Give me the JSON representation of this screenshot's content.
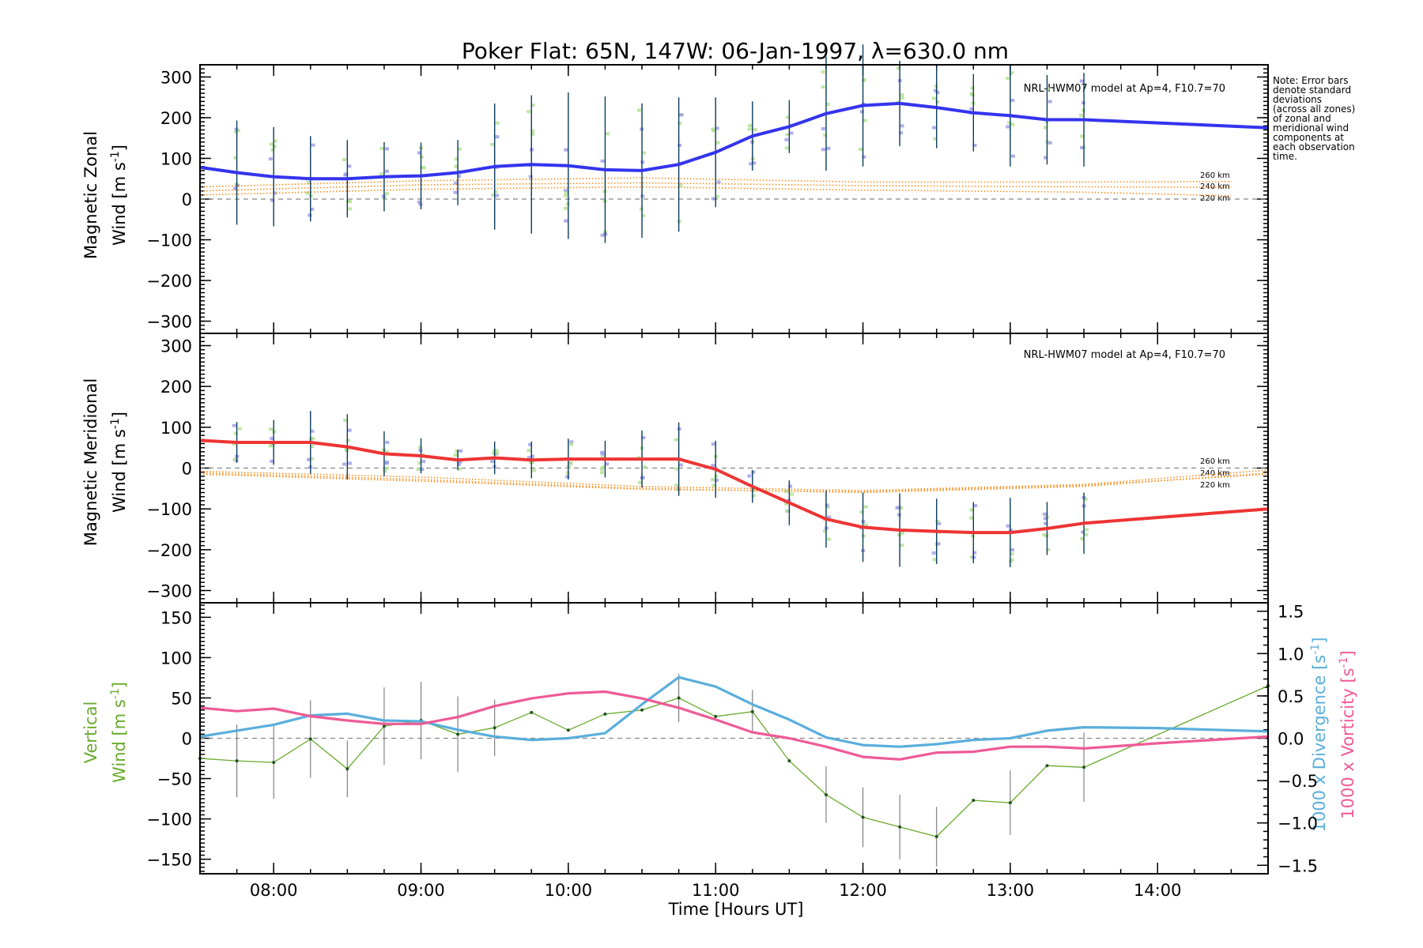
{
  "title": "Poker Flat: 65N, 147W: 06-Jan-1997, λ=630.0 nm",
  "note_lines": [
    "Note: Error bars",
    "denote standard",
    "deviations",
    "(across all zones)",
    "of zonal and",
    "meridional wind",
    "components at",
    "each observation",
    "time."
  ],
  "model_label": "NRL-HWM07 model at Ap=4, F10.7=70",
  "altitude_labels": [
    "260 km",
    "240 km",
    "220 km"
  ],
  "xlabel": "Time [Hours UT]",
  "x_ticks": [
    "08:00",
    "09:00",
    "10:00",
    "11:00",
    "12:00",
    "13:00",
    "14:00"
  ],
  "colors": {
    "zonal": "#3434ee",
    "meridional": "#ee3434",
    "vertical": "#6aaa2e",
    "divergence": "#5aaedc",
    "vorticity": "#ee5a96",
    "model": "#ff8c1a",
    "errorbar": "#0a3a5a",
    "scatter_green": "#b0e090",
    "scatter_blue": "#9a9ae8"
  },
  "chart_data": [
    {
      "type": "line",
      "panel": "zonal",
      "ylabel_line1": "Magnetic Zonal",
      "ylabel_line2": "Wind [m s",
      "ylabel_sup": "-1",
      "ylabel_end": "]",
      "ylim": [
        -330,
        330
      ],
      "y_ticks": [
        300,
        200,
        100,
        0,
        -100,
        -200,
        -300
      ],
      "y_tick_labels": [
        "300",
        "200",
        "100",
        "0",
        "−100",
        "−200",
        "−300"
      ],
      "xlim": [
        7.5,
        14.75
      ],
      "series": [
        {
          "name": "Magnetic Zonal Wind",
          "x": [
            7.5,
            7.75,
            8.0,
            8.25,
            8.5,
            8.75,
            9.0,
            9.25,
            9.5,
            9.75,
            10.0,
            10.25,
            10.5,
            10.75,
            11.0,
            11.25,
            11.5,
            11.75,
            12.0,
            12.25,
            12.5,
            12.75,
            13.0,
            13.25,
            13.5,
            14.75
          ],
          "values": [
            78,
            65,
            55,
            50,
            50,
            55,
            57,
            65,
            80,
            85,
            82,
            72,
            70,
            85,
            115,
            155,
            178,
            210,
            230,
            235,
            225,
            212,
            205,
            195,
            195,
            175
          ]
        }
      ],
      "error_bars": {
        "x": [
          7.75,
          8.0,
          8.25,
          8.5,
          8.75,
          9.0,
          9.25,
          9.5,
          9.75,
          10.0,
          10.25,
          10.5,
          10.75,
          11.0,
          11.25,
          11.5,
          11.75,
          12.0,
          12.25,
          12.5,
          12.75,
          13.0,
          13.25,
          13.5
        ],
        "center": [
          65,
          55,
          50,
          50,
          55,
          57,
          65,
          80,
          85,
          82,
          72,
          70,
          85,
          115,
          155,
          178,
          210,
          230,
          235,
          225,
          212,
          205,
          195,
          195
        ],
        "sd": [
          128,
          122,
          105,
          95,
          85,
          82,
          80,
          155,
          170,
          180,
          180,
          165,
          165,
          135,
          85,
          65,
          140,
          150,
          105,
          100,
          95,
          125,
          110,
          115
        ]
      },
      "model_curves": [
        {
          "name": "260 km",
          "x": [
            7.5,
            9.0,
            10.5,
            12.0,
            13.5,
            14.5
          ],
          "values": [
            30,
            45,
            52,
            42,
            42,
            43
          ]
        },
        {
          "name": "240 km",
          "x": [
            7.5,
            9.0,
            10.5,
            12.0,
            13.5,
            14.5
          ],
          "values": [
            20,
            35,
            40,
            33,
            30,
            29
          ]
        },
        {
          "name": "220 km",
          "x": [
            7.5,
            9.0,
            10.5,
            12.0,
            13.5,
            14.5
          ],
          "values": [
            10,
            24,
            30,
            22,
            17,
            8
          ]
        }
      ]
    },
    {
      "type": "line",
      "panel": "meridional",
      "ylabel_line1": "Magnetic Meridional",
      "ylabel_line2": "Wind [m s",
      "ylabel_sup": "-1",
      "ylabel_end": "]",
      "ylim": [
        -330,
        330
      ],
      "y_ticks": [
        300,
        200,
        100,
        0,
        -100,
        -200,
        -300
      ],
      "y_tick_labels": [
        "300",
        "200",
        "100",
        "0",
        "−100",
        "−200",
        "−300"
      ],
      "xlim": [
        7.5,
        14.75
      ],
      "series": [
        {
          "name": "Magnetic Meridional Wind",
          "x": [
            7.5,
            7.75,
            8.0,
            8.25,
            8.5,
            8.75,
            9.0,
            9.25,
            9.5,
            9.75,
            10.0,
            10.25,
            10.5,
            10.75,
            11.0,
            11.25,
            11.5,
            11.75,
            12.0,
            12.25,
            12.5,
            12.75,
            13.0,
            13.25,
            13.5,
            14.75
          ],
          "values": [
            68,
            63,
            63,
            63,
            52,
            35,
            30,
            20,
            25,
            20,
            22,
            22,
            22,
            22,
            -3,
            -45,
            -85,
            -125,
            -145,
            -152,
            -155,
            -158,
            -158,
            -148,
            -135,
            -100
          ]
        }
      ],
      "error_bars": {
        "x": [
          7.75,
          8.0,
          8.25,
          8.5,
          8.75,
          9.0,
          9.25,
          9.5,
          9.75,
          10.0,
          10.25,
          10.5,
          10.75,
          11.0,
          11.25,
          11.5,
          11.75,
          12.0,
          12.25,
          12.5,
          12.75,
          13.0,
          13.25,
          13.5
        ],
        "center": [
          63,
          63,
          63,
          52,
          35,
          30,
          20,
          25,
          20,
          22,
          22,
          22,
          22,
          -3,
          -45,
          -85,
          -125,
          -145,
          -152,
          -155,
          -158,
          -158,
          -148,
          -135
        ],
        "sd": [
          50,
          55,
          77,
          80,
          55,
          43,
          25,
          40,
          45,
          50,
          45,
          70,
          90,
          70,
          40,
          55,
          70,
          85,
          90,
          80,
          75,
          85,
          65,
          75
        ]
      },
      "model_curves": [
        {
          "name": "260 km",
          "x": [
            7.5,
            9.0,
            10.5,
            12.0,
            13.5,
            14.75
          ],
          "values": [
            -8,
            -22,
            -45,
            -55,
            -40,
            -5
          ]
        },
        {
          "name": "240 km",
          "x": [
            7.5,
            9.0,
            10.5,
            12.0,
            13.5,
            14.75
          ],
          "values": [
            -12,
            -28,
            -50,
            -60,
            -45,
            -12
          ]
        },
        {
          "name": "220 km",
          "x": [
            7.5,
            9.0,
            10.5,
            12.0,
            13.5,
            14.75
          ],
          "values": [
            -15,
            -32,
            -52,
            -58,
            -42,
            -15
          ]
        }
      ]
    },
    {
      "type": "line",
      "panel": "vertical",
      "ylabel_line1": "Vertical",
      "ylabel_line2": "Wind [m s",
      "ylabel_sup": "-1",
      "ylabel_end": "]",
      "ylim": [
        -168,
        168
      ],
      "y_ticks": [
        150,
        100,
        50,
        0,
        -50,
        -100,
        -150
      ],
      "y_tick_labels": [
        "150",
        "100",
        "50",
        "0",
        "−50",
        "−100",
        "−150"
      ],
      "y2lim": [
        -1.6,
        1.6
      ],
      "y2_ticks": [
        1.5,
        1.0,
        0.5,
        0.0,
        -0.5,
        -1.0,
        -1.5
      ],
      "y2_tick_labels": [
        "1.5",
        "1.0",
        "0.5",
        "0.0",
        "−0.5",
        "−1.0",
        "−1.5"
      ],
      "y2label_div": "1000 x Divergence [s",
      "y2label_vort": "1000 x Vorticity [s",
      "y2label_sup": "-1",
      "y2label_end": "]",
      "xlim": [
        7.5,
        14.75
      ],
      "series": [
        {
          "name": "Vertical Wind",
          "axis": "left",
          "x": [
            7.5,
            7.75,
            8.0,
            8.25,
            8.5,
            8.75,
            9.0,
            9.25,
            9.5,
            9.75,
            10.0,
            10.25,
            10.5,
            10.75,
            11.0,
            11.25,
            11.5,
            11.75,
            12.0,
            12.25,
            12.5,
            12.75,
            13.0,
            13.25,
            13.5,
            14.75
          ],
          "values": [
            -25,
            -28,
            -30,
            -1,
            -38,
            15,
            22,
            5,
            13,
            32,
            10,
            30,
            35,
            50,
            27,
            33,
            -28,
            -70,
            -98,
            -110,
            -122,
            -77,
            -80,
            -34,
            -36,
            65
          ],
          "sd": [
            0,
            45,
            45,
            48,
            35,
            48,
            48,
            47,
            35,
            0,
            0,
            0,
            0,
            30,
            0,
            27,
            0,
            35,
            37,
            40,
            37,
            0,
            40,
            0,
            43,
            0
          ]
        },
        {
          "name": "1000 x Divergence",
          "axis": "right",
          "x": [
            7.5,
            8.0,
            8.25,
            8.5,
            8.75,
            9.0,
            9.25,
            9.5,
            9.75,
            10.0,
            10.25,
            10.5,
            10.75,
            11.0,
            11.25,
            11.5,
            11.75,
            12.0,
            12.25,
            12.5,
            12.75,
            13.0,
            13.25,
            13.5,
            14.0,
            14.75
          ],
          "values": [
            0.02,
            0.16,
            0.27,
            0.29,
            0.21,
            0.2,
            0.1,
            0.02,
            -0.02,
            0.0,
            0.06,
            0.4,
            0.72,
            0.61,
            0.4,
            0.22,
            0.01,
            -0.08,
            -0.1,
            -0.07,
            -0.02,
            0.0,
            0.09,
            0.13,
            0.12,
            0.08
          ]
        },
        {
          "name": "1000 x Vorticity",
          "axis": "right",
          "x": [
            7.5,
            7.75,
            8.0,
            8.25,
            8.5,
            8.75,
            9.0,
            9.25,
            9.5,
            9.75,
            10.0,
            10.25,
            10.5,
            10.75,
            11.0,
            11.25,
            11.5,
            11.75,
            12.0,
            12.25,
            12.5,
            12.75,
            13.0,
            13.25,
            13.5,
            14.0,
            14.75
          ],
          "values": [
            0.36,
            0.32,
            0.35,
            0.26,
            0.21,
            0.17,
            0.17,
            0.25,
            0.38,
            0.47,
            0.53,
            0.55,
            0.47,
            0.36,
            0.22,
            0.07,
            0.0,
            -0.1,
            -0.22,
            -0.25,
            -0.17,
            -0.16,
            -0.1,
            -0.1,
            -0.12,
            -0.06,
            0.02
          ]
        }
      ]
    }
  ]
}
